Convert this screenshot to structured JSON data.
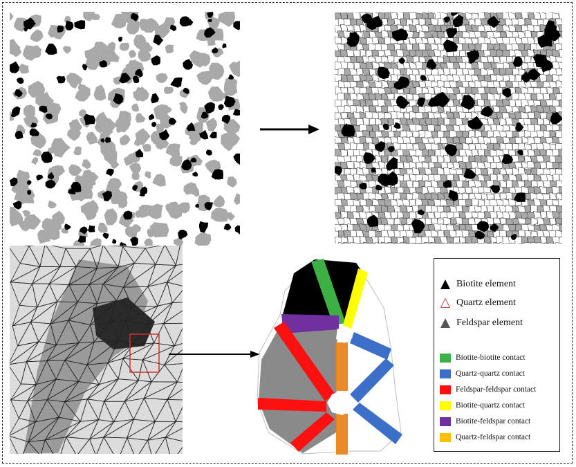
{
  "colors": {
    "biotite_fill": "#000000",
    "quartz_fill": "#ffffff",
    "feldspar_fill": "#8a8a8a",
    "biotite_biotite": "#3cb043",
    "quartz_quartz": "#3b6fc8",
    "feldspar_feldspar": "#ff1010",
    "biotite_quartz": "#ffff00",
    "biotite_feldspar": "#7030a0",
    "quartz_feldspar": "#ffc000",
    "highlight_box": "#d03030"
  },
  "legend": {
    "elements": [
      {
        "label": "Biotite element",
        "icon": "triangle-black-icon"
      },
      {
        "label": "Quartz element",
        "icon": "triangle-outline-icon"
      },
      {
        "label": "Feldspar element",
        "icon": "triangle-gray-icon"
      }
    ],
    "contacts": [
      {
        "label": "Biotite-biotite contact",
        "color": "#3cb043"
      },
      {
        "label": "Quartz-quartz contact",
        "color": "#3b6fc8"
      },
      {
        "label": "Feldspar-feldspar contact",
        "color": "#ff1010"
      },
      {
        "label": "Biotite-quartz contact",
        "color": "#ffff00"
      },
      {
        "label": "Biotite-feldspar contact",
        "color": "#7030a0"
      },
      {
        "label": "Quartz-feldspar contact",
        "color": "#ffc000"
      }
    ]
  }
}
